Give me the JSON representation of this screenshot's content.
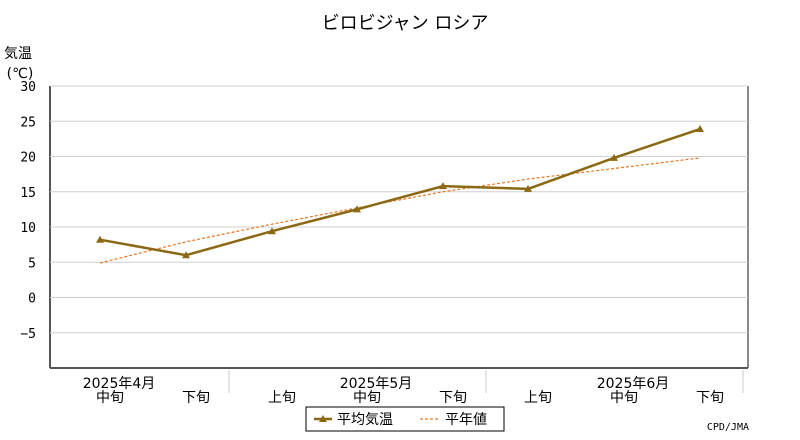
{
  "chart_data": {
    "type": "line",
    "title": "ビロビジャン ロシア",
    "ylabel_line1": "気温",
    "ylabel_line2": "(℃)",
    "ylim": [
      -10,
      30
    ],
    "yticks": [
      30,
      25,
      20,
      15,
      10,
      5,
      0,
      -5
    ],
    "grid": true,
    "x": [
      "2025年4月中旬",
      "2025年4月下旬",
      "2025年5月上旬",
      "2025年5月中旬",
      "2025年5月下旬",
      "2025年6月上旬",
      "2025年6月中旬",
      "2025年6月下旬"
    ],
    "x_tick_labels": [
      "中旬",
      "下旬",
      "上旬",
      "中旬",
      "下旬",
      "上旬",
      "中旬",
      "下旬"
    ],
    "month_labels": [
      {
        "label": "2025年4月",
        "index": 0
      },
      {
        "label": "2025年5月",
        "index": 3
      },
      {
        "label": "2025年6月",
        "index": 6
      }
    ],
    "series": [
      {
        "name": "平均気温",
        "color": "#8b6914",
        "style": "solid",
        "marker": "triangle",
        "values": [
          8.2,
          6.0,
          9.4,
          12.5,
          15.8,
          15.4,
          19.8,
          23.9
        ]
      },
      {
        "name": "平年値",
        "color": "#e87722",
        "style": "dashed",
        "marker": "none",
        "values": [
          4.9,
          7.9,
          10.4,
          12.7,
          15.0,
          16.8,
          18.3,
          19.8
        ]
      }
    ],
    "legend_position": "bottom-center",
    "credit": "CPD/JMA"
  }
}
